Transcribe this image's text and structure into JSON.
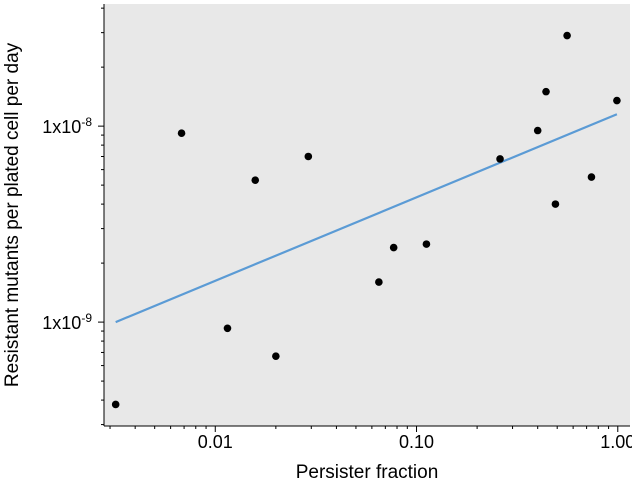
{
  "chart_data": {
    "type": "scatter",
    "xlabel": "Persister fraction",
    "ylabel": "Resistant mutants per plated cell per day",
    "x_scale": "log",
    "y_scale": "log",
    "xlim": [
      0.0028,
      1.15
    ],
    "ylim": [
      2.95e-10,
      4.2e-08
    ],
    "x_ticks": [
      {
        "value": 0.01,
        "label": "0.01"
      },
      {
        "value": 0.1,
        "label": "0.10"
      },
      {
        "value": 1.0,
        "label": "1.00"
      }
    ],
    "y_ticks": [
      {
        "value": 1e-09,
        "base": "1x10",
        "exponent": "-9"
      },
      {
        "value": 1e-08,
        "base": "1x10",
        "exponent": "-8"
      }
    ],
    "grid": false,
    "legend": "none",
    "colors": {
      "background": "#e8e8e8",
      "points": "#000000",
      "fit_line": "#5b9bd5"
    },
    "series": [
      {
        "points": [
          {
            "x": 0.0032,
            "y": 3.8e-10
          },
          {
            "x": 0.0068,
            "y": 9.2e-09
          },
          {
            "x": 0.0115,
            "y": 9.3e-10
          },
          {
            "x": 0.0158,
            "y": 5.3e-09
          },
          {
            "x": 0.02,
            "y": 6.7e-10
          },
          {
            "x": 0.029,
            "y": 7e-09
          },
          {
            "x": 0.065,
            "y": 1.6e-09
          },
          {
            "x": 0.077,
            "y": 2.4e-09
          },
          {
            "x": 0.112,
            "y": 2.5e-09
          },
          {
            "x": 0.26,
            "y": 6.8e-09
          },
          {
            "x": 0.4,
            "y": 9.5e-09
          },
          {
            "x": 0.44,
            "y": 1.5e-08
          },
          {
            "x": 0.49,
            "y": 4e-09
          },
          {
            "x": 0.56,
            "y": 2.9e-08
          },
          {
            "x": 0.74,
            "y": 5.5e-09
          },
          {
            "x": 0.99,
            "y": 1.35e-08
          }
        ]
      }
    ],
    "fit_line": {
      "x": [
        0.0032,
        0.99
      ],
      "y": [
        1e-09,
        1.15e-08
      ]
    }
  }
}
